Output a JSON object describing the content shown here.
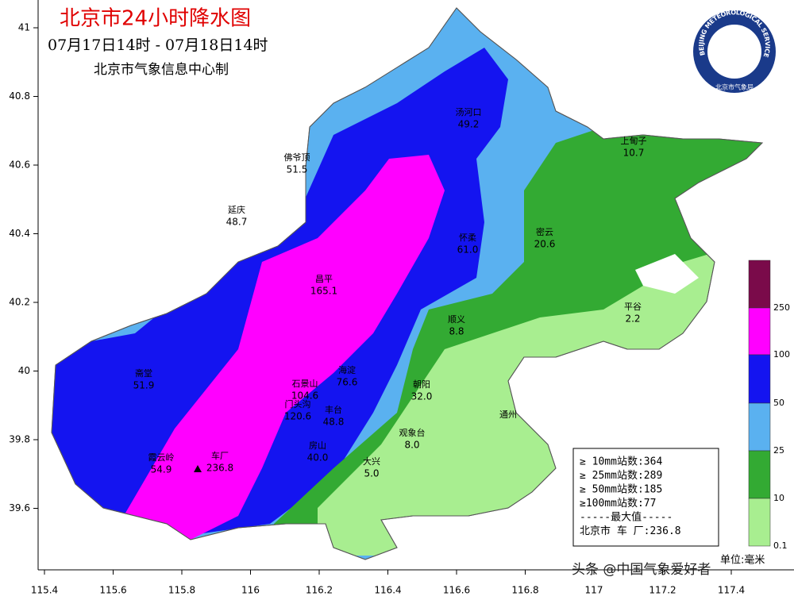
{
  "header": {
    "title": "北京市24小时降水图",
    "period": "07月17日14时 - 07月18日14时",
    "issuer": "北京市气象信息中心制"
  },
  "logo": {
    "ring": "BEIJING METEOROLOGICAL SERVICE",
    "name": "北京市气象局"
  },
  "axes": {
    "lat_ticks": [
      41,
      40.8,
      40.6,
      40.4,
      40.2,
      40,
      39.8,
      39.6
    ],
    "lon_ticks": [
      115.4,
      115.6,
      115.8,
      116,
      116.2,
      116.4,
      116.6,
      116.8,
      117,
      117.2,
      117.4
    ]
  },
  "stations": [
    {
      "name": "汤河口",
      "value": "49.2"
    },
    {
      "name": "佛爷顶",
      "value": "51.5"
    },
    {
      "name": "上甸子",
      "value": "10.7"
    },
    {
      "name": "延庆",
      "value": "48.7"
    },
    {
      "name": "怀柔",
      "value": "61.0"
    },
    {
      "name": "密云",
      "value": "20.6"
    },
    {
      "name": "昌平",
      "value": "165.1"
    },
    {
      "name": "平谷",
      "value": "2.2"
    },
    {
      "name": "顺义",
      "value": "8.8"
    },
    {
      "name": "斋堂",
      "value": "51.9"
    },
    {
      "name": "海淀",
      "value": "76.6"
    },
    {
      "name": "朝阳",
      "value": "32.0"
    },
    {
      "name": "石景山",
      "value": "104.6"
    },
    {
      "name": "门头沟",
      "value": "120.6"
    },
    {
      "name": "丰台",
      "value": "48.8"
    },
    {
      "name": "观象台",
      "value": "8.0"
    },
    {
      "name": "霞云岭",
      "value": "54.9"
    },
    {
      "name": "车厂",
      "value": "236.8"
    },
    {
      "name": "房山",
      "value": "40.0"
    },
    {
      "name": "大兴",
      "value": "5.0"
    },
    {
      "name": "通州",
      "value": null
    }
  ],
  "stats": [
    "≥ 10mm站数:364",
    "≥ 25mm站数:289",
    "≥ 50mm站数:185",
    "≥100mm站数:77",
    "-----最大值-----",
    "北京市 车 厂:236.8"
  ],
  "colorbar": {
    "labels": [
      "250",
      "100",
      "50",
      "25",
      "10",
      "0.1"
    ]
  },
  "unit": "单位:毫米",
  "watermark": "头条 @中国气象爱好者"
}
